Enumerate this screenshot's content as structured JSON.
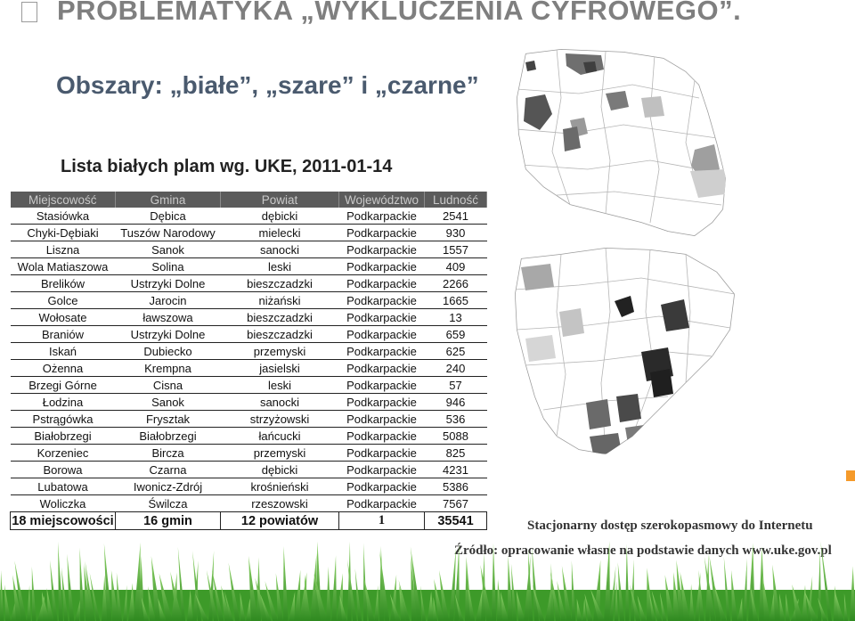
{
  "title": "PROBLEMATYKA „WYKLUCZENIA CYFROWEGO”.",
  "subtitle": "Obszary: „białe”, „szare” i „czarne”",
  "list_heading": "Lista białych plam wg. UKE, 2011-01-14",
  "table": {
    "headers": [
      "Miejscowość",
      "Gmina",
      "Powiat",
      "Województwo",
      "Ludność"
    ],
    "rows": [
      [
        "Stasiówka",
        "Dębica",
        "dębicki",
        "Podkarpackie",
        "2541"
      ],
      [
        "Chyki-Dębiaki",
        "Tuszów Narodowy",
        "mielecki",
        "Podkarpackie",
        "930"
      ],
      [
        "Liszna",
        "Sanok",
        "sanocki",
        "Podkarpackie",
        "1557"
      ],
      [
        "Wola Matiaszowa",
        "Solina",
        "leski",
        "Podkarpackie",
        "409"
      ],
      [
        "Brelików",
        "Ustrzyki Dolne",
        "bieszczadzki",
        "Podkarpackie",
        "2266"
      ],
      [
        "Golce",
        "Jarocin",
        "niżański",
        "Podkarpackie",
        "1665"
      ],
      [
        "Wołosate",
        "ławszowa",
        "bieszczadzki",
        "Podkarpackie",
        "13"
      ],
      [
        "Braniów",
        "Ustrzyki Dolne",
        "bieszczadzki",
        "Podkarpackie",
        "659"
      ],
      [
        "Iskań",
        "Dubiecko",
        "przemyski",
        "Podkarpackie",
        "625"
      ],
      [
        "Ożenna",
        "Krempna",
        "jasielski",
        "Podkarpackie",
        "240"
      ],
      [
        "Brzegi Górne",
        "Cisna",
        "leski",
        "Podkarpackie",
        "57"
      ],
      [
        "Łodzina",
        "Sanok",
        "sanocki",
        "Podkarpackie",
        "946"
      ],
      [
        "Pstrągówka",
        "Frysztak",
        "strzyżowski",
        "Podkarpackie",
        "536"
      ],
      [
        "Białobrzegi",
        "Białobrzegi",
        "łańcucki",
        "Podkarpackie",
        "5088"
      ],
      [
        "Korzeniec",
        "Bircza",
        "przemyski",
        "Podkarpackie",
        "825"
      ],
      [
        "Borowa",
        "Czarna",
        "dębicki",
        "Podkarpackie",
        "4231"
      ],
      [
        "Lubatowa",
        "Iwonicz-Zdrój",
        "krośnieński",
        "Podkarpackie",
        "5386"
      ],
      [
        "Woliczka",
        "Świlcza",
        "rzeszowski",
        "Podkarpackie",
        "7567"
      ]
    ],
    "total": [
      "18 miejscowości",
      "16 gmin",
      "12 powiatów",
      "1",
      "35541"
    ]
  },
  "map_caption": "Stacjonarny dostęp szerokopasmowy do Internetu",
  "source": "Źródło: opracowanie własne na podstawie danych www.uke.gov.pl",
  "colors": {
    "title": "#7f7f7f",
    "subtitle": "#4a5a6e",
    "header_bg": "#5b5b5b",
    "grass": "#3c9a28",
    "accent": "#f59a2a"
  },
  "icons": [
    "bullet-box-icon",
    "grass-decoration"
  ]
}
